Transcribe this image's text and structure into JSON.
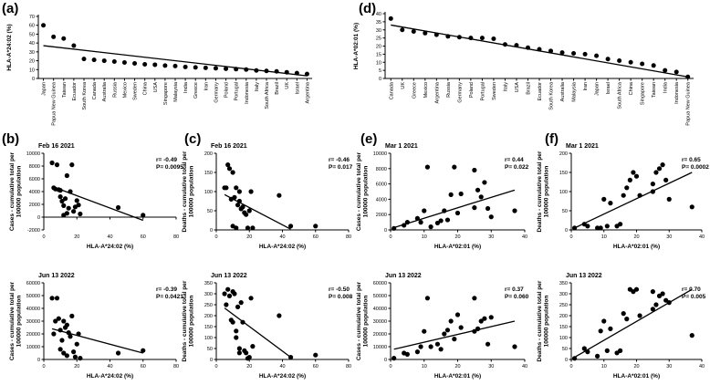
{
  "chart_data": [
    {
      "id": "a",
      "type": "scatter",
      "panel_label": "(a)",
      "ylabel": "HLA-A*24:02 (%)",
      "ylim": [
        0,
        70
      ],
      "yticks": [
        0,
        10,
        20,
        30,
        40,
        50,
        60,
        70
      ],
      "categories": [
        "Japan",
        "Papua New Guinea",
        "Taiwan",
        "Ecuador",
        "South Korea",
        "Canada",
        "Australia",
        "Russia",
        "Mexico",
        "Sweden",
        "China",
        "USA",
        "Singapore",
        "Malaysia",
        "India",
        "Greece",
        "Iran",
        "Germany",
        "Poland",
        "Portugal",
        "Indonesia",
        "Italy",
        "South Africa",
        "Brazil",
        "UK",
        "Israel",
        "Argentina"
      ],
      "values": [
        60,
        47,
        45,
        37,
        22,
        21,
        20,
        19,
        18,
        17,
        16,
        15.5,
        14.5,
        14,
        13,
        12.5,
        12,
        11.5,
        11,
        10.5,
        10,
        9,
        8.5,
        8,
        7,
        6,
        5
      ],
      "trend": [
        37,
        3
      ]
    },
    {
      "id": "d",
      "type": "scatter",
      "panel_label": "(d)",
      "ylabel": "HLA-A*02:01 (%)",
      "ylim": [
        0,
        40
      ],
      "yticks": [
        0,
        5,
        10,
        15,
        20,
        25,
        30,
        35,
        40
      ],
      "categories": [
        "Canada",
        "UK",
        "Greece",
        "Mexico",
        "Argentina",
        "Russia",
        "Germany",
        "Poland",
        "Portugal",
        "Sweden",
        "Italy",
        "USA",
        "Brazil",
        "Ecuador",
        "South Korea",
        "Australia",
        "Malaysia",
        "Iran",
        "Japan",
        "Israel",
        "South Africa",
        "China",
        "Singapore",
        "Taiwan",
        "India",
        "Indonesia",
        "Papua New Guinea"
      ],
      "values": [
        37,
        30,
        29,
        28,
        27,
        26,
        25.5,
        25,
        25,
        24.5,
        21,
        20.5,
        19,
        18,
        17,
        16,
        15.5,
        15,
        14,
        12,
        11,
        10,
        9,
        8,
        5,
        4,
        1
      ],
      "trend": [
        33,
        1
      ]
    },
    {
      "id": "b1",
      "type": "scatter",
      "panel_label": "(b)",
      "date": "Feb 16 2021",
      "stat_r": "r= -0.49",
      "stat_p": "P= 0.0095",
      "xlabel": "HLA-A*24:02 (%)",
      "ylabel": "Cases - cumulative total per 100000 population",
      "xlim": [
        0,
        80
      ],
      "xticks": [
        0,
        20,
        40,
        60,
        80
      ],
      "ylim": [
        -2000,
        10000
      ],
      "yticks": [
        -2000,
        0,
        2000,
        4000,
        6000,
        8000,
        10000
      ],
      "x": [
        5,
        6,
        7,
        8,
        9,
        10,
        10,
        11,
        12,
        12,
        13,
        14,
        14,
        15,
        16,
        17,
        18,
        19,
        20,
        21,
        22,
        45,
        60
      ],
      "y": [
        8500,
        4600,
        4400,
        8200,
        4300,
        4200,
        3200,
        2500,
        300,
        1800,
        2900,
        600,
        6500,
        1400,
        4000,
        8200,
        900,
        1600,
        2600,
        1900,
        500,
        1500,
        300
      ],
      "trend": [
        [
          5,
          4800
        ],
        [
          60,
          -500
        ]
      ]
    },
    {
      "id": "c1",
      "type": "scatter",
      "panel_label": "(c)",
      "date": "Feb 16 2021",
      "stat_r": "r= -0.46",
      "stat_p": "P= 0.017",
      "xlabel": "HLA-A*24:02 (%)",
      "ylabel": "Deaths - cumulative total per 100000 population",
      "xlim": [
        0,
        80
      ],
      "xticks": [
        0,
        20,
        40,
        60,
        80
      ],
      "ylim": [
        0,
        200
      ],
      "yticks": [
        0,
        50,
        100,
        150,
        200
      ],
      "x": [
        5,
        6,
        7,
        8,
        9,
        10,
        10,
        11,
        12,
        12,
        13,
        14,
        14,
        15,
        16,
        17,
        18,
        19,
        20,
        21,
        22,
        38,
        45,
        60
      ],
      "y": [
        110,
        110,
        170,
        160,
        80,
        150,
        10,
        85,
        110,
        5,
        65,
        75,
        100,
        55,
        60,
        45,
        40,
        5,
        50,
        100,
        5,
        90,
        10,
        10
      ],
      "trend": [
        [
          5,
          92
        ],
        [
          45,
          2
        ]
      ]
    },
    {
      "id": "e1",
      "type": "scatter",
      "panel_label": "(e)",
      "date": "Mar 1 2021",
      "stat_r": "r= 0.44",
      "stat_p": "P= 0.022",
      "xlabel": "HLA-A*02:01 (%)",
      "ylabel": "Cases - cumulative total per 100000 population",
      "xlim": [
        0,
        40
      ],
      "xticks": [
        0,
        10,
        20,
        30,
        40
      ],
      "ylim": [
        0,
        10000
      ],
      "yticks": [
        0,
        2000,
        4000,
        6000,
        8000,
        10000
      ],
      "x": [
        1,
        4,
        5,
        8,
        9,
        10,
        11,
        12,
        14,
        15,
        16,
        17,
        18,
        19,
        20,
        21,
        25,
        25,
        26,
        27,
        28,
        29,
        30,
        37
      ],
      "y": [
        200,
        600,
        1000,
        1500,
        1000,
        2500,
        8200,
        400,
        900,
        1200,
        2500,
        1300,
        4600,
        8200,
        2200,
        4700,
        7800,
        2900,
        5200,
        4300,
        6200,
        2800,
        1700,
        2500
      ],
      "trend": [
        [
          1,
          300
        ],
        [
          37,
          5200
        ]
      ]
    },
    {
      "id": "f1",
      "type": "scatter",
      "panel_label": "(f)",
      "date": "Mar 1 2021",
      "stat_r": "r= 0.65",
      "stat_p": "P= 0.0002",
      "xlabel": "HLA-A*02:01 (%)",
      "ylabel": "Deaths - cumulative total per 100000 population",
      "xlim": [
        0,
        40
      ],
      "xticks": [
        0,
        10,
        20,
        30,
        40
      ],
      "ylim": [
        0,
        200
      ],
      "yticks": [
        0,
        50,
        100,
        150,
        200
      ],
      "x": [
        1,
        4,
        5,
        8,
        9,
        10,
        11,
        12,
        14,
        15,
        16,
        17,
        18,
        19,
        20,
        21,
        25,
        25,
        26,
        27,
        28,
        29,
        30,
        37
      ],
      "y": [
        5,
        15,
        10,
        5,
        5,
        80,
        10,
        70,
        10,
        15,
        90,
        110,
        130,
        150,
        140,
        90,
        120,
        100,
        150,
        160,
        170,
        130,
        80,
        60
      ],
      "trend": [
        [
          1,
          5
        ],
        [
          37,
          150
        ]
      ]
    },
    {
      "id": "b2",
      "type": "scatter",
      "date": "Jun 13 2022",
      "stat_r": "r= -0.39",
      "stat_p": "P= 0.0421",
      "xlabel": "HLA-A*24:02 (%)",
      "ylabel": "Cases - cumulative total per 100000 population",
      "xlim": [
        0,
        80
      ],
      "xticks": [
        0,
        20,
        40,
        60,
        80
      ],
      "ylim": [
        0,
        60000
      ],
      "yticks": [
        0,
        10000,
        20000,
        30000,
        40000,
        50000,
        60000
      ],
      "x": [
        5,
        6,
        7,
        8,
        9,
        10,
        10,
        11,
        12,
        12,
        13,
        14,
        14,
        15,
        16,
        17,
        18,
        19,
        20,
        21,
        22,
        45,
        60
      ],
      "y": [
        48000,
        20000,
        30000,
        48000,
        32000,
        8000,
        23000,
        15000,
        30000,
        5000,
        25000,
        27000,
        3000,
        21000,
        18000,
        34000,
        6000,
        2000,
        12000,
        20000,
        1000,
        5000,
        7000
      ],
      "trend": [
        [
          5,
          24000
        ],
        [
          60,
          5000
        ]
      ]
    },
    {
      "id": "c2",
      "type": "scatter",
      "date": "Jun 13 2022",
      "stat_r": "r= -0.50",
      "stat_p": "P= 0.008",
      "xlabel": "HLA-A*24:02 (%)",
      "ylabel": "Deaths - cumulative total per 100000 population",
      "xlim": [
        0,
        80
      ],
      "xticks": [
        0,
        20,
        40,
        60,
        80
      ],
      "ylim": [
        0,
        350
      ],
      "yticks": [
        0,
        50,
        100,
        150,
        200,
        250,
        300,
        350
      ],
      "x": [
        5,
        6,
        7,
        8,
        9,
        10,
        10,
        11,
        12,
        12,
        13,
        14,
        14,
        15,
        16,
        17,
        18,
        19,
        20,
        21,
        22,
        38,
        45,
        60
      ],
      "y": [
        300,
        250,
        320,
        290,
        180,
        310,
        170,
        300,
        130,
        100,
        240,
        50,
        30,
        260,
        170,
        40,
        30,
        5,
        10,
        280,
        60,
        200,
        10,
        20
      ],
      "trend": [
        [
          5,
          235
        ],
        [
          45,
          10
        ]
      ]
    },
    {
      "id": "e2",
      "type": "scatter",
      "date": "Jun 13 2022",
      "stat_r": "r= 0.37",
      "stat_p": "P= 0.060",
      "xlabel": "HLA-A*02:01 (%)",
      "ylabel": "Cases - cumulative total per 100000 population",
      "xlim": [
        0,
        40
      ],
      "xticks": [
        0,
        10,
        20,
        30,
        40
      ],
      "ylim": [
        0,
        60000
      ],
      "yticks": [
        0,
        10000,
        20000,
        30000,
        40000,
        50000,
        60000
      ],
      "x": [
        1,
        4,
        5,
        8,
        9,
        10,
        11,
        12,
        14,
        15,
        16,
        17,
        18,
        19,
        20,
        21,
        25,
        25,
        26,
        27,
        28,
        29,
        30,
        37
      ],
      "y": [
        1000,
        5000,
        4000,
        6000,
        10000,
        22000,
        48000,
        10000,
        12000,
        8000,
        20000,
        23000,
        30000,
        16000,
        35000,
        25000,
        48000,
        22000,
        24000,
        30000,
        32000,
        12000,
        33000,
        10000
      ],
      "trend": [
        [
          1,
          8000
        ],
        [
          37,
          30000
        ]
      ]
    },
    {
      "id": "f2",
      "type": "scatter",
      "date": "Jun 13 2022",
      "stat_r": "r= 0.70",
      "stat_p": "P= 0.005",
      "xlabel": "HLA-A*02:01 (%)",
      "ylabel": "Deaths - cumulative total per 100000 population",
      "xlim": [
        0,
        40
      ],
      "xticks": [
        0,
        10,
        20,
        30,
        40
      ],
      "ylim": [
        0,
        350
      ],
      "yticks": [
        0,
        50,
        100,
        150,
        200,
        250,
        300,
        350
      ],
      "x": [
        1,
        4,
        5,
        8,
        9,
        10,
        11,
        12,
        14,
        15,
        16,
        17,
        18,
        19,
        20,
        21,
        25,
        25,
        26,
        27,
        28,
        29,
        30,
        37
      ],
      "y": [
        5,
        50,
        35,
        15,
        130,
        175,
        40,
        140,
        30,
        40,
        210,
        185,
        320,
        310,
        320,
        200,
        310,
        230,
        250,
        290,
        300,
        270,
        260,
        110
      ],
      "trend": [
        [
          1,
          10
        ],
        [
          37,
          320
        ]
      ]
    }
  ]
}
